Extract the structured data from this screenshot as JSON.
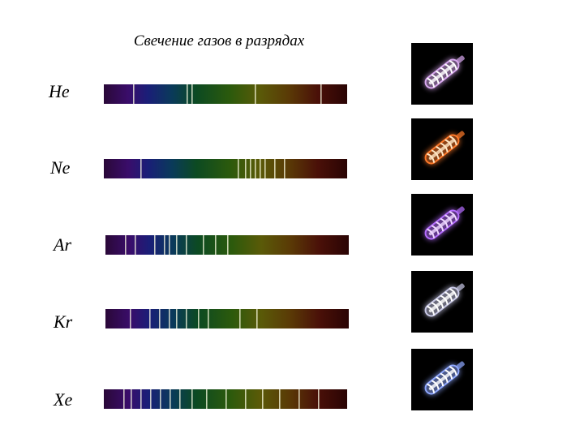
{
  "title": "Свечение газов в разрядах",
  "gases": [
    {
      "label": "He",
      "lines": [
        0.12,
        0.34,
        0.36,
        0.62,
        0.89
      ],
      "glow": "#d9a8f0",
      "core": "#ffffff"
    },
    {
      "label": "Ne",
      "lines": [
        0.15,
        0.55,
        0.58,
        0.6,
        0.62,
        0.64,
        0.66,
        0.7,
        0.74
      ],
      "glow": "#ff7a2a",
      "core": "#ffe6c4"
    },
    {
      "label": "Ar",
      "lines": [
        0.08,
        0.12,
        0.2,
        0.24,
        0.26,
        0.29,
        0.33,
        0.4,
        0.45,
        0.5
      ],
      "glow": "#b56cff",
      "core": "#efd8ff"
    },
    {
      "label": "Kr",
      "lines": [
        0.1,
        0.18,
        0.22,
        0.26,
        0.29,
        0.33,
        0.38,
        0.42,
        0.55,
        0.62
      ],
      "glow": "#c8c8e6",
      "core": "#ffffff"
    },
    {
      "label": "Xe",
      "lines": [
        0.08,
        0.11,
        0.15,
        0.19,
        0.23,
        0.27,
        0.31,
        0.36,
        0.42,
        0.5,
        0.58,
        0.65,
        0.72,
        0.8,
        0.88
      ],
      "glow": "#8fa8ff",
      "core": "#ffffff"
    }
  ]
}
